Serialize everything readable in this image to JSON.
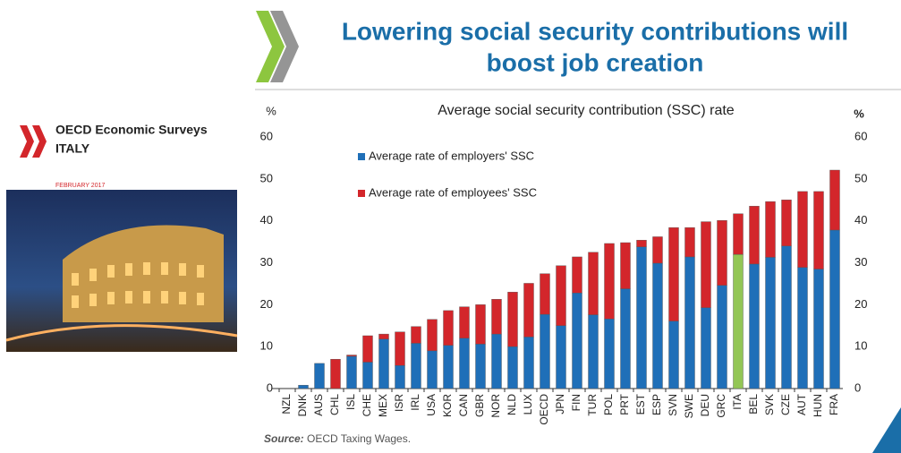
{
  "header": {
    "title": [
      "Lowering social security contributions will",
      "boost job creation"
    ]
  },
  "cover": {
    "series": "OECD Economic Surveys",
    "country": "ITALY",
    "date": "FEBRUARY 2017"
  },
  "chart_data": {
    "type": "bar",
    "stacked": true,
    "title": "Average social security contribution (SSC) rate",
    "ylabel": "%",
    "y2label": "%",
    "categories": [
      "NZL",
      "DNK",
      "AUS",
      "CHL",
      "ISL",
      "CHE",
      "MEX",
      "ISR",
      "IRL",
      "USA",
      "KOR",
      "CAN",
      "GBR",
      "NOR",
      "NLD",
      "LUX",
      "OECD",
      "JPN",
      "FIN",
      "TUR",
      "POL",
      "PRT",
      "EST",
      "ESP",
      "SVN",
      "SWE",
      "DEU",
      "GRC",
      "ITA",
      "BEL",
      "SVK",
      "CZE",
      "AUT",
      "HUN",
      "FRA"
    ],
    "series": [
      {
        "name": "Average rate of employers' SSC",
        "color": "#1f6fb8",
        "values": [
          0,
          0.8,
          6,
          0,
          7.7,
          6.3,
          11.8,
          5.5,
          10.8,
          9,
          10.3,
          12,
          10.6,
          13,
          10,
          12.3,
          17.7,
          15,
          22.8,
          17.6,
          16.6,
          23.8,
          33.8,
          29.9,
          16.1,
          31.4,
          19.3,
          24.6,
          32,
          29.7,
          31.3,
          34,
          28.9,
          28.5,
          37.8
        ]
      },
      {
        "name": "Average rate of employees' SSC",
        "color": "#d3262b",
        "values": [
          0,
          0,
          0,
          7,
          0.3,
          6.3,
          1.2,
          8,
          4,
          7.5,
          8.3,
          7.5,
          9.4,
          8.3,
          13,
          12.8,
          9.7,
          14.3,
          8.6,
          14.9,
          18,
          11,
          1.6,
          6.3,
          22.3,
          7,
          20.5,
          15.5,
          9.7,
          13.8,
          13.3,
          11,
          18.1,
          18.5,
          14.3
        ]
      }
    ],
    "highlight": {
      "index": 28,
      "series": 0,
      "color": "#93c655"
    },
    "ylim": [
      0,
      60
    ],
    "yticks": [
      0,
      10,
      20,
      30,
      40,
      50,
      60
    ],
    "y2lim": [
      0,
      60
    ],
    "y2ticks": [
      0,
      10,
      20,
      30,
      40,
      50,
      60
    ]
  },
  "source": {
    "label": "Source:",
    "text": "OECD Taxing Wages."
  }
}
